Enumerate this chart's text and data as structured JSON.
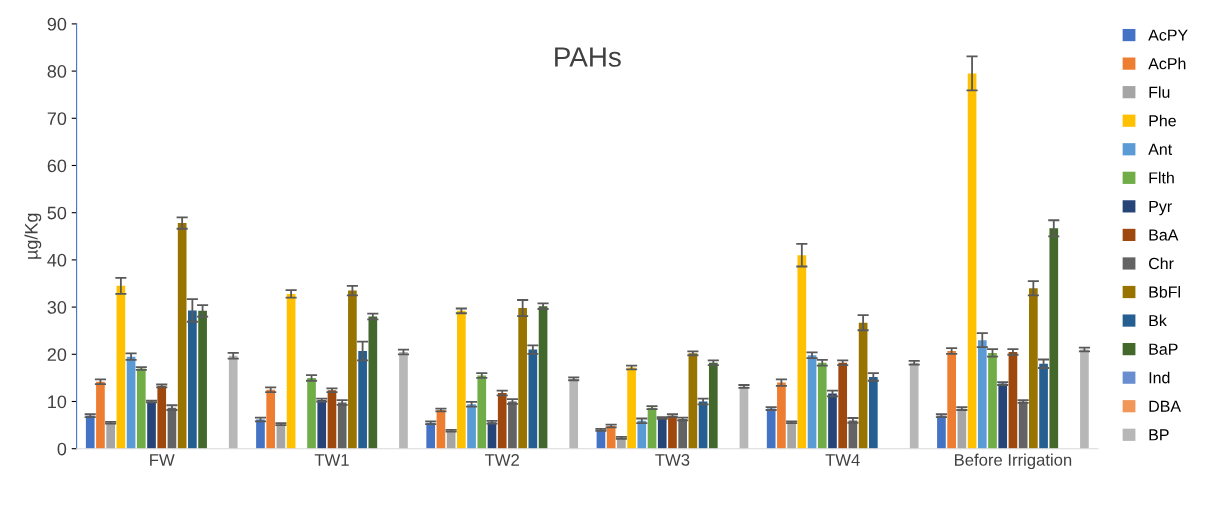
{
  "chart_data": {
    "type": "bar",
    "title": "PAHs",
    "ylabel": "µg/Kg",
    "categories": [
      "FW",
      "TW1",
      "TW2",
      "TW3",
      "TW4",
      "Before Irrigation"
    ],
    "ylim": [
      0,
      90
    ],
    "yticks": [
      0,
      10,
      20,
      30,
      40,
      50,
      60,
      70,
      80,
      90
    ],
    "grid": false,
    "legend": "right",
    "series": [
      {
        "name": "AcPY",
        "color": "#4472c4",
        "values": [
          7,
          6.2,
          5.5,
          4,
          8.5,
          7
        ],
        "errors": [
          0.3,
          0.4,
          0.3,
          0.2,
          0.3,
          0.3
        ]
      },
      {
        "name": "AcPh",
        "color": "#ed7d31",
        "values": [
          14.2,
          12.5,
          8.2,
          4.8,
          14,
          20.7
        ],
        "errors": [
          0.5,
          0.5,
          0.3,
          0.3,
          0.7,
          0.6
        ]
      },
      {
        "name": "Flu",
        "color": "#a5a5a5",
        "values": [
          5.5,
          5.2,
          3.8,
          2.3,
          5.6,
          8.5
        ],
        "errors": [
          0.2,
          0.2,
          0.2,
          0.2,
          0.2,
          0.3
        ]
      },
      {
        "name": "Phe",
        "color": "#ffc000",
        "values": [
          34.5,
          32.8,
          29.2,
          17.2,
          41,
          79.5
        ],
        "errors": [
          1.7,
          0.8,
          0.5,
          0.4,
          2.4,
          3.6
        ]
      },
      {
        "name": "Ant",
        "color": "#5b9bd5",
        "values": [
          19.5,
          null,
          9.4,
          5.9,
          19.8,
          23
        ],
        "errors": [
          0.7,
          null,
          0.5,
          0.5,
          0.6,
          1.5
        ]
      },
      {
        "name": "Flth",
        "color": "#70ad47",
        "values": [
          17,
          15,
          15.5,
          8.7,
          18.2,
          20.3
        ],
        "errors": [
          0.3,
          0.6,
          0.5,
          0.3,
          0.6,
          0.8
        ]
      },
      {
        "name": "Pyr",
        "color": "#264478",
        "values": [
          10,
          10.3,
          5.6,
          6.5,
          11.7,
          13.8
        ],
        "errors": [
          0.2,
          0.3,
          0.3,
          0.2,
          0.6,
          0.3
        ]
      },
      {
        "name": "BaA",
        "color": "#9e480e",
        "values": [
          13.3,
          12.4,
          11.8,
          7,
          18.2,
          20.5
        ],
        "errors": [
          0.3,
          0.4,
          0.5,
          0.3,
          0.5,
          0.6
        ]
      },
      {
        "name": "Chr",
        "color": "#636363",
        "values": [
          8.7,
          9.8,
          10,
          6.3,
          6,
          10
        ],
        "errors": [
          0.5,
          0.5,
          0.5,
          0.3,
          0.5,
          0.3
        ]
      },
      {
        "name": "BbFl",
        "color": "#997300",
        "values": [
          47.8,
          33.5,
          29.8,
          20.2,
          26.7,
          34
        ],
        "errors": [
          1.2,
          1.0,
          1.7,
          0.4,
          1.6,
          1.5
        ]
      },
      {
        "name": "Bk",
        "color": "#255e91",
        "values": [
          29.3,
          20.7,
          21,
          10,
          15.2,
          18
        ],
        "errors": [
          2.4,
          2.0,
          0.9,
          0.6,
          0.8,
          0.9
        ]
      },
      {
        "name": "BaP",
        "color": "#43682b",
        "values": [
          29.2,
          28,
          30.2,
          18.2,
          null,
          46.7
        ],
        "errors": [
          1.2,
          0.6,
          0.6,
          0.5,
          null,
          1.7
        ]
      },
      {
        "name": "Ind",
        "color": "#698ed0",
        "values": [
          null,
          null,
          null,
          null,
          null,
          null
        ]
      },
      {
        "name": "DBA",
        "color": "#f1975a",
        "values": [
          null,
          null,
          null,
          null,
          null,
          null
        ]
      },
      {
        "name": "BP",
        "color": "#b7b7b7",
        "values": [
          19.7,
          20.5,
          14.8,
          13.2,
          18.2,
          21
        ],
        "errors": [
          0.6,
          0.5,
          0.3,
          0.3,
          0.4,
          0.4
        ]
      }
    ]
  }
}
